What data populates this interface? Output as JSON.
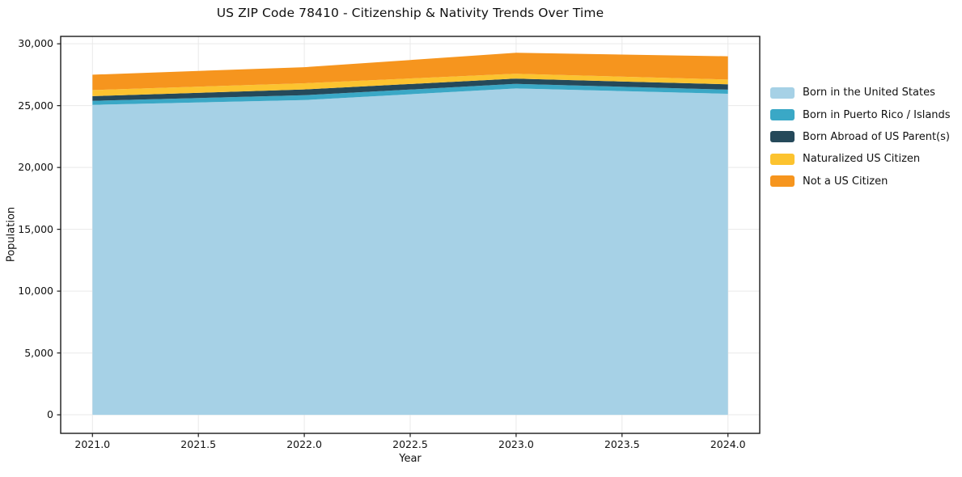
{
  "chart": {
    "title": "US ZIP Code 78410 - Citizenship & Nativity Trends Over Time",
    "xlabel": "Year",
    "ylabel": "Population"
  },
  "chart_data": {
    "type": "area",
    "stacked": true,
    "title": "US ZIP Code 78410 - Citizenship & Nativity Trends Over Time",
    "xlabel": "Year",
    "ylabel": "Population",
    "x": [
      2021,
      2022,
      2023,
      2024
    ],
    "series": [
      {
        "name": "Born in the United States",
        "color": "#a6d1e6",
        "values": [
          25060,
          25450,
          26390,
          25960
        ]
      },
      {
        "name": "Born in Puerto Rico / Islands",
        "color": "#3aa8c6",
        "values": [
          330,
          390,
          370,
          330
        ]
      },
      {
        "name": "Born Abroad of US Parent(s)",
        "color": "#25495a",
        "values": [
          380,
          470,
          430,
          430
        ]
      },
      {
        "name": "Naturalized US Citizen",
        "color": "#fcc32f",
        "values": [
          490,
          500,
          390,
          390
        ]
      },
      {
        "name": "Not a US Citizen",
        "color": "#f6951e",
        "values": [
          1240,
          1300,
          1690,
          1880
        ]
      }
    ],
    "totals": [
      27500,
      28110,
      29270,
      28990
    ],
    "xlim": [
      2020.85,
      2024.15
    ],
    "ylim": [
      -1500,
      30600
    ],
    "xticks": {
      "values": [
        2021.0,
        2021.5,
        2022.0,
        2022.5,
        2023.0,
        2023.5,
        2024.0
      ],
      "labels": [
        "2021.0",
        "2021.5",
        "2022.0",
        "2022.5",
        "2023.0",
        "2023.5",
        "2024.0"
      ]
    },
    "yticks": {
      "values": [
        0,
        5000,
        10000,
        15000,
        20000,
        25000,
        30000
      ],
      "labels": [
        "0",
        "5,000",
        "10,000",
        "15,000",
        "20,000",
        "25,000",
        "30,000"
      ]
    },
    "grid": true,
    "grid_color": "#e9e9e9",
    "spine_color": "#1a1a1a",
    "legend_position": "right"
  }
}
